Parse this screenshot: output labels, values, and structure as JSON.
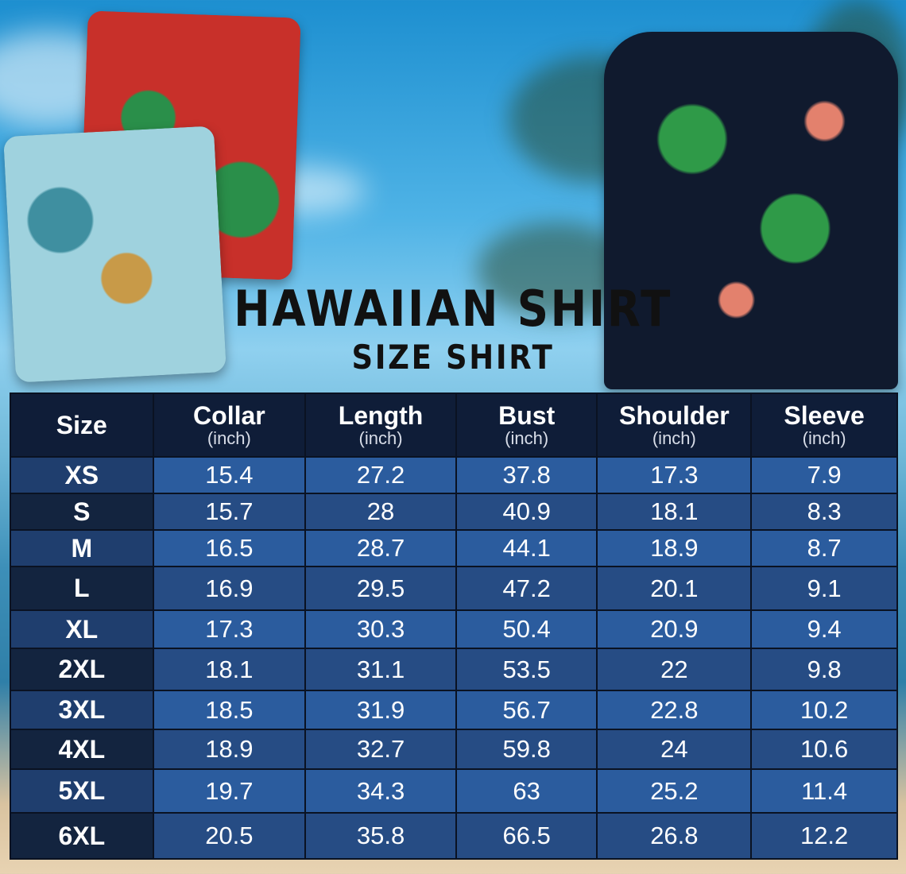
{
  "title": "HAWAIIAN SHIRT",
  "subtitle": "SIZE SHIRT",
  "colors": {
    "header_bg": "#0f1d38",
    "row_light": "#2b5c9e",
    "row_dark": "#264c84",
    "size_col_light": "#1f3e6e",
    "size_col_dark": "#13243f",
    "text": "#ffffff"
  },
  "table": {
    "headers": [
      {
        "label": "Size",
        "unit": ""
      },
      {
        "label": "Collar",
        "unit": "(inch)"
      },
      {
        "label": "Length",
        "unit": "(inch)"
      },
      {
        "label": "Bust",
        "unit": "(inch)"
      },
      {
        "label": "Shoulder",
        "unit": "(inch)"
      },
      {
        "label": "Sleeve",
        "unit": "(inch)"
      }
    ],
    "rows": [
      [
        "XS",
        "15.4",
        "27.2",
        "37.8",
        "17.3",
        "7.9"
      ],
      [
        "S",
        "15.7",
        "28",
        "40.9",
        "18.1",
        "8.3"
      ],
      [
        "M",
        "16.5",
        "28.7",
        "44.1",
        "18.9",
        "8.7"
      ],
      [
        "L",
        "16.9",
        "29.5",
        "47.2",
        "20.1",
        "9.1"
      ],
      [
        "XL",
        "17.3",
        "30.3",
        "50.4",
        "20.9",
        "9.4"
      ],
      [
        "2XL",
        "18.1",
        "31.1",
        "53.5",
        "22",
        "9.8"
      ],
      [
        "3XL",
        "18.5",
        "31.9",
        "56.7",
        "22.8",
        "10.2"
      ],
      [
        "4XL",
        "18.9",
        "32.7",
        "59.8",
        "24",
        "10.6"
      ],
      [
        "5XL",
        "19.7",
        "34.3",
        "63",
        "25.2",
        "11.4"
      ],
      [
        "6XL",
        "20.5",
        "35.8",
        "66.5",
        "26.8",
        "12.2"
      ]
    ]
  }
}
